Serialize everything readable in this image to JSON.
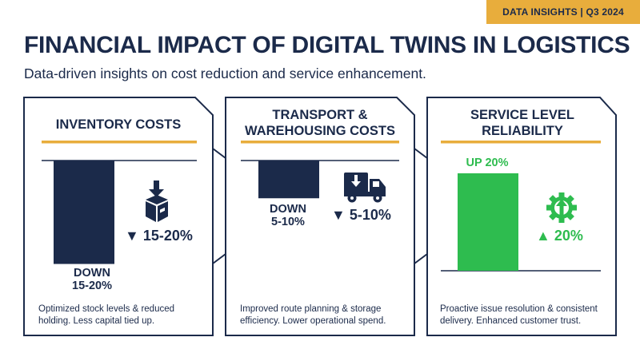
{
  "badge": "DATA INSIGHTS | Q3 2024",
  "title": "FINANCIAL IMPACT OF DIGITAL TWINS IN LOGISTICS",
  "subtitle": "Data-driven insights on cost reduction and service enhancement.",
  "colors": {
    "navy": "#1b2a4a",
    "accent": "#e8ad3c",
    "green": "#2ebc4f"
  },
  "chart_data": [
    {
      "type": "bar",
      "title": "INVENTORY COSTS",
      "categories": [
        "Inventory Costs"
      ],
      "values": [
        -17.5
      ],
      "range": [
        -20,
        -15
      ],
      "unit": "%",
      "bar_label": [
        "DOWN",
        "15-20%"
      ],
      "indicator": "▼ 15-20%",
      "icon": "box-download-icon",
      "description": [
        "Optimized stock levels & reduced",
        "holding. Less capital tied up."
      ]
    },
    {
      "type": "bar",
      "title": [
        "TRANSPORT &",
        "WAREHOUSING COSTS"
      ],
      "categories": [
        "Transport & Warehousing Costs"
      ],
      "values": [
        -7.5
      ],
      "range": [
        -10,
        -5
      ],
      "unit": "%",
      "bar_label": [
        "DOWN",
        "5-10%"
      ],
      "indicator": "▼ 5-10%",
      "icon": "delivery-truck-icon",
      "description": [
        "Improved route planning & storage",
        "efficiency. Lower operational spend."
      ]
    },
    {
      "type": "bar",
      "title": [
        "SERVICE LEVEL",
        "RELIABILITY"
      ],
      "categories": [
        "Service Level Reliability"
      ],
      "values": [
        20
      ],
      "unit": "%",
      "bar_label": [
        "UP 20%"
      ],
      "indicator": "▲ 20%",
      "icon": "gear-arrow-up-icon",
      "description": [
        "Proactive issue resolution & consistent",
        "delivery. Enhanced customer trust."
      ]
    }
  ]
}
